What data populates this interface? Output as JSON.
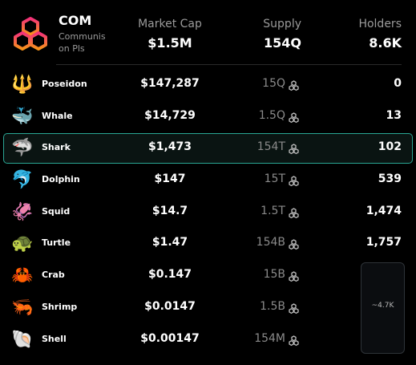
{
  "token": {
    "symbol": "COM",
    "name": "Communis on Pls",
    "logo_icon": "hexagon-cluster-logo-icon",
    "logo_colors": [
      "#f4317a",
      "#f7931a"
    ]
  },
  "header": {
    "market_cap_label": "Market Cap",
    "market_cap_value": "$1.5M",
    "supply_label": "Supply",
    "supply_value": "154Q",
    "holders_label": "Holders",
    "holders_value": "8.6K"
  },
  "highlight_color": "#2aa694",
  "supply_icon": "hexagon-cluster-outline-icon",
  "tiers": [
    {
      "emoji": "🔱",
      "icon": "trident-icon",
      "name": "Poseidon",
      "market_cap": "$147,287",
      "supply": "15Q",
      "holders": "0"
    },
    {
      "emoji": "🐳",
      "icon": "whale-icon",
      "name": "Whale",
      "market_cap": "$14,729",
      "supply": "1.5Q",
      "holders": "13"
    },
    {
      "emoji": "🦈",
      "icon": "shark-icon",
      "name": "Shark",
      "market_cap": "$1,473",
      "supply": "154T",
      "holders": "102",
      "highlighted": true
    },
    {
      "emoji": "🐬",
      "icon": "dolphin-icon",
      "name": "Dolphin",
      "market_cap": "$147",
      "supply": "15T",
      "holders": "539"
    },
    {
      "emoji": "🦑",
      "icon": "squid-icon",
      "name": "Squid",
      "market_cap": "$14.7",
      "supply": "1.5T",
      "holders": "1,474"
    },
    {
      "emoji": "🐢",
      "icon": "turtle-icon",
      "name": "Turtle",
      "market_cap": "$1.47",
      "supply": "154B",
      "holders": "1,757"
    },
    {
      "emoji": "🦀",
      "icon": "crab-icon",
      "name": "Crab",
      "market_cap": "$0.147",
      "supply": "15B",
      "holders": ""
    },
    {
      "emoji": "🦐",
      "icon": "shrimp-icon",
      "name": "Shrimp",
      "market_cap": "$0.0147",
      "supply": "1.5B",
      "holders": ""
    },
    {
      "emoji": "🐚",
      "icon": "shell-icon",
      "name": "Shell",
      "market_cap": "$0.00147",
      "supply": "154M",
      "holders": ""
    }
  ],
  "grouped_holders": {
    "label": "~4.7K"
  }
}
